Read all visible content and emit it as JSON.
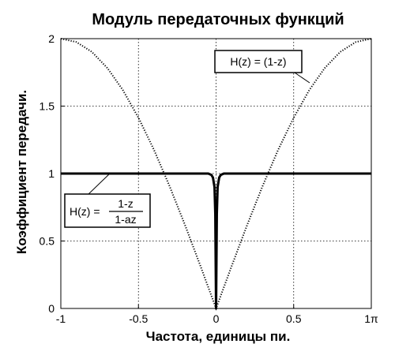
{
  "chart_data": {
    "type": "line",
    "title": "Модуль передаточных функций",
    "xlabel": "Частота,  единицы пи.",
    "ylabel": "Коэффициент передачи.",
    "xlim": [
      -1,
      1
    ],
    "ylim": [
      0,
      2
    ],
    "x_ticks": [
      -1,
      -0.5,
      0,
      0.5,
      1
    ],
    "x_tick_labels": [
      "-1",
      "-0.5",
      "0",
      "0.5",
      "1π"
    ],
    "y_ticks": [
      0,
      0.5,
      1,
      1.5,
      2
    ],
    "y_tick_labels": [
      "0",
      "0.5",
      "1",
      "1.5",
      "2"
    ],
    "grid": true,
    "series": [
      {
        "style": "dotted",
        "color": "#000000",
        "x": [
          -1,
          -0.9,
          -0.8,
          -0.7,
          -0.6,
          -0.5,
          -0.4,
          -0.3,
          -0.2,
          -0.1,
          0,
          0.1,
          0.2,
          0.3,
          0.4,
          0.5,
          0.6,
          0.7,
          0.8,
          0.9,
          1
        ],
        "y": [
          2.0,
          1.975,
          1.902,
          1.782,
          1.618,
          1.414,
          1.176,
          0.908,
          0.618,
          0.313,
          0.0,
          0.313,
          0.618,
          0.908,
          1.176,
          1.414,
          1.618,
          1.782,
          1.902,
          1.975,
          2.0
        ]
      },
      {
        "style": "solid-thick",
        "color": "#000000",
        "x": [
          -1,
          -0.05,
          -0.03,
          -0.02,
          -0.01,
          -0.005,
          0,
          0.005,
          0.01,
          0.02,
          0.03,
          0.05,
          1
        ],
        "y": [
          1.0,
          1.0,
          0.99,
          0.97,
          0.9,
          0.7,
          0.0,
          0.7,
          0.9,
          0.97,
          0.99,
          1.0,
          1.0
        ]
      }
    ],
    "annotations": [
      {
        "text": "H(z) = (1-z)"
      },
      {
        "lhs": "H(z) =",
        "numerator": "1-z",
        "denominator": "1-az"
      }
    ]
  }
}
